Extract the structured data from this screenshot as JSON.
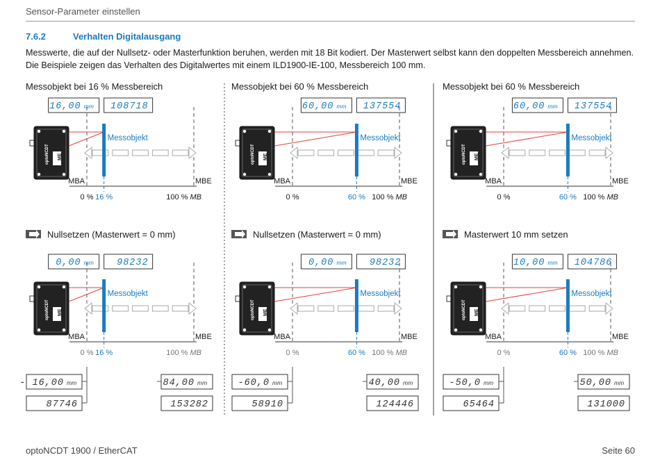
{
  "header": {
    "running_title": "Sensor-Parameter einstellen"
  },
  "section": {
    "number": "7.6.2",
    "title": "Verhalten Digitalausgang",
    "intro": "Messwerte, die auf der Nullsetz- oder Masterfunktion beruhen, werden mit 18 Bit kodiert. Der Masterwert selbst kann den doppelten Messbereich annehmen. Die Beispiele zeigen das Verhalten des Digitalwertes mit einem ILD1900-IE-100, Messbereich 100 mm."
  },
  "labels": {
    "object": "Messobjekt",
    "mba": "MBA",
    "mbe": "MBE",
    "zero": "0 %",
    "hundred": "100 % ",
    "mb": "MB",
    "unit": "mm",
    "brand": "optoNCDT",
    "logo": "ME"
  },
  "colors": {
    "accent": "#1a7bbd",
    "laser": "#e0403c"
  },
  "panels": [
    {
      "caption": "Messobjekt bei 16 % Messbereich",
      "obj_percent": 16,
      "obj_label": "16 %",
      "top_display": {
        "mm": "16,00",
        "digital": "108718"
      },
      "action": "Nullsetzen (Masterwert = 0 mm)",
      "mid_display": {
        "mm": "0,00",
        "digital": "98232"
      },
      "bottom_left": {
        "mm": "- 16,00",
        "digital": "87746"
      },
      "bottom_right": {
        "mm": "84,00",
        "digital": "153282"
      }
    },
    {
      "caption": "Messobjekt bei 60 % Messbereich",
      "obj_percent": 60,
      "obj_label": "60 %",
      "top_display": {
        "mm": "60,00",
        "digital": "137554"
      },
      "action": "Nullsetzen (Masterwert = 0 mm)",
      "mid_display": {
        "mm": "0,00",
        "digital": "98232"
      },
      "bottom_left": {
        "mm": "-60,0",
        "digital": "58910"
      },
      "bottom_right": {
        "mm": "40,00",
        "digital": "124446"
      }
    },
    {
      "caption": "Messobjekt bei 60 % Messbereich",
      "obj_percent": 60,
      "obj_label": "60 %",
      "top_display": {
        "mm": "60,00",
        "digital": "137554"
      },
      "action": "Masterwert 10 mm setzen",
      "mid_display": {
        "mm": "10,00",
        "digital": "104786"
      },
      "bottom_left": {
        "mm": "-50,0",
        "digital": "65464"
      },
      "bottom_right": {
        "mm": "50,00",
        "digital": "131000"
      }
    }
  ],
  "footer": {
    "product": "optoNCDT 1900 / EtherCAT",
    "page": "Seite 60"
  }
}
